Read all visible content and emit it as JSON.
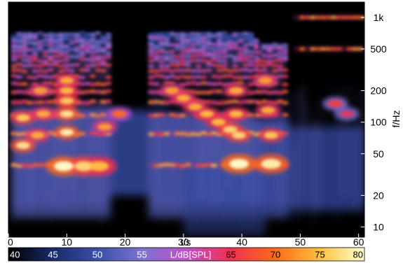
{
  "chart_data": {
    "type": "heatmap",
    "title": "",
    "xlabel": "t/s",
    "ylabel": "f/Hz",
    "xlim": [
      0,
      61
    ],
    "ylim": [
      8,
      1400
    ],
    "yscale": "log",
    "x_ticks": [
      0,
      10,
      20,
      30,
      40,
      50,
      60
    ],
    "x_tick_labels": [
      "0",
      "10",
      "20",
      "30",
      "40",
      "50",
      "60"
    ],
    "y_ticks": [
      10,
      20,
      50,
      100,
      200,
      500,
      1000
    ],
    "y_tick_labels": [
      "10",
      "20",
      "50",
      "100",
      "200",
      "500",
      "1k"
    ],
    "colorbar": {
      "label": "L/dB[SPL]",
      "range": [
        40,
        80
      ],
      "ticks": [
        40,
        45,
        50,
        55,
        60,
        65,
        70,
        75,
        80
      ],
      "tick_labels": [
        "40",
        "45",
        "50",
        "55",
        "",
        "65",
        "70",
        "75",
        "80"
      ],
      "stops": [
        {
          "value": 40,
          "color": "#000000"
        },
        {
          "value": 45,
          "color": "#1a2a6a"
        },
        {
          "value": 50,
          "color": "#3a4fa8"
        },
        {
          "value": 55,
          "color": "#7b73cf"
        },
        {
          "value": 60,
          "color": "#c050c8"
        },
        {
          "value": 65,
          "color": "#f03050"
        },
        {
          "value": 70,
          "color": "#ff6a1a"
        },
        {
          "value": 75,
          "color": "#ffc040"
        },
        {
          "value": 80,
          "color": "#ffffd0"
        }
      ]
    },
    "segments": [
      {
        "t_start": 0.5,
        "t_end": 17.5,
        "f0": 38,
        "harmonics": 18
      },
      {
        "t_start": 24,
        "t_end": 42,
        "f0": 38,
        "harmonics": 18
      },
      {
        "t_start": 42.5,
        "t_end": 47.5,
        "f0": 38,
        "harmonics": 14
      },
      {
        "t_start": 49,
        "t_end": 61,
        "f0": 500,
        "harmonics": 2
      }
    ],
    "hotspots": [
      {
        "t": 2.5,
        "f": 60,
        "level": 78
      },
      {
        "t": 2.5,
        "f": 110,
        "level": 76
      },
      {
        "t": 9.5,
        "f": 38,
        "level": 80
      },
      {
        "t": 13,
        "f": 38,
        "level": 77
      },
      {
        "t": 15.5,
        "f": 38,
        "level": 75
      },
      {
        "t": 10,
        "f": 80,
        "level": 79
      },
      {
        "t": 10,
        "f": 120,
        "level": 78
      },
      {
        "t": 10,
        "f": 160,
        "level": 76
      },
      {
        "t": 10,
        "f": 200,
        "level": 75
      },
      {
        "t": 10,
        "f": 250,
        "level": 74
      },
      {
        "t": 5,
        "f": 75,
        "level": 74
      },
      {
        "t": 6,
        "f": 120,
        "level": 74
      },
      {
        "t": 5.5,
        "f": 200,
        "level": 73
      },
      {
        "t": 16.5,
        "f": 90,
        "level": 73
      },
      {
        "t": 19,
        "f": 120,
        "level": 70
      },
      {
        "t": 28,
        "f": 200,
        "level": 73
      },
      {
        "t": 30,
        "f": 170,
        "level": 74
      },
      {
        "t": 32,
        "f": 140,
        "level": 74
      },
      {
        "t": 34,
        "f": 120,
        "level": 75
      },
      {
        "t": 36,
        "f": 100,
        "level": 75
      },
      {
        "t": 38,
        "f": 85,
        "level": 77
      },
      {
        "t": 39.5,
        "f": 40,
        "level": 80
      },
      {
        "t": 39.5,
        "f": 75,
        "level": 77
      },
      {
        "t": 39,
        "f": 120,
        "level": 75
      },
      {
        "t": 39,
        "f": 200,
        "level": 74
      },
      {
        "t": 45,
        "f": 40,
        "level": 79
      },
      {
        "t": 45,
        "f": 75,
        "level": 76
      },
      {
        "t": 44.5,
        "f": 130,
        "level": 74
      },
      {
        "t": 44,
        "f": 250,
        "level": 73
      },
      {
        "t": 56,
        "f": 150,
        "level": 66
      },
      {
        "t": 58,
        "f": 120,
        "level": 64
      }
    ]
  }
}
